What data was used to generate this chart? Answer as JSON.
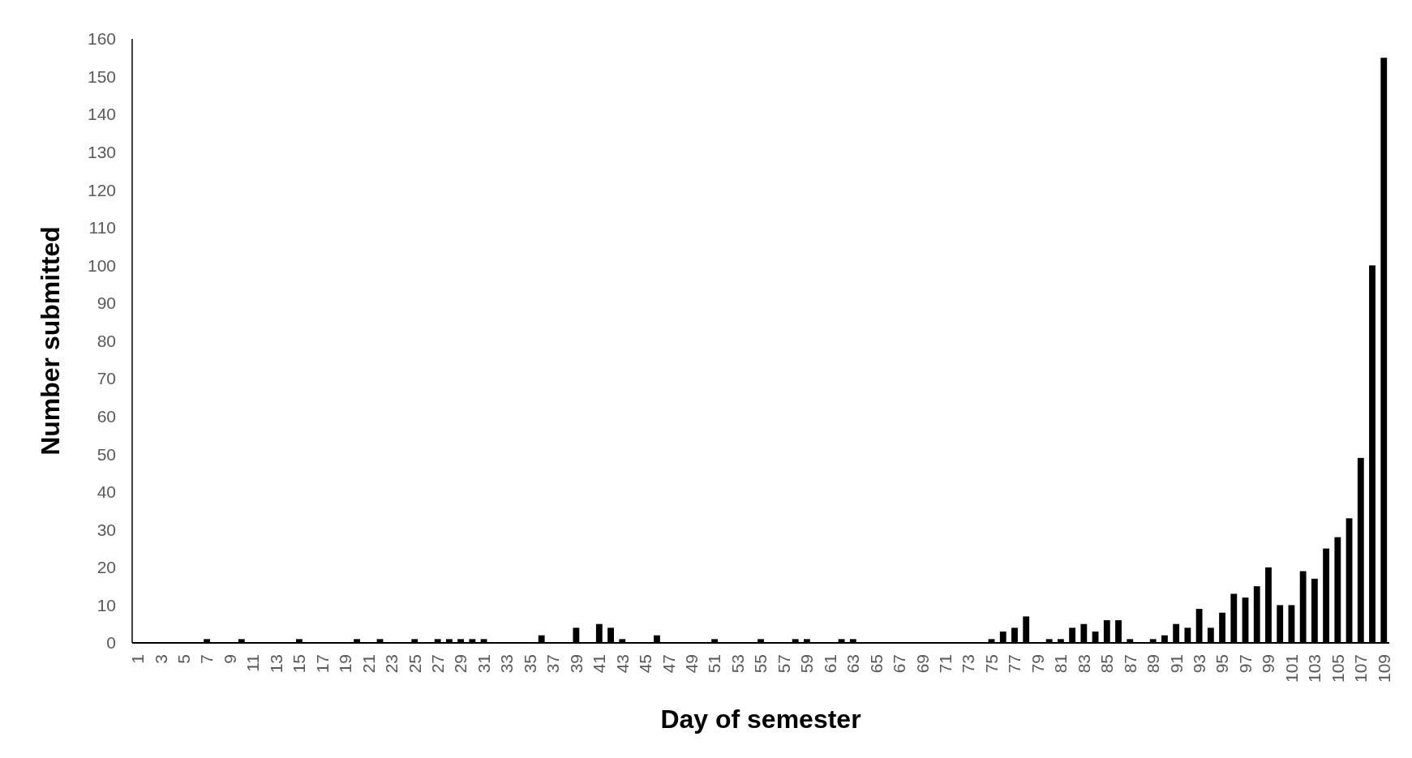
{
  "chart_data": {
    "type": "bar",
    "xlabel": "Day of semester",
    "ylabel": "Number submitted",
    "categories": [
      "1",
      null,
      "3",
      null,
      "5",
      null,
      "7",
      null,
      "9",
      null,
      "11",
      null,
      "13",
      null,
      "15",
      null,
      "17",
      null,
      "19",
      null,
      "21",
      null,
      "23",
      null,
      "25",
      null,
      "27",
      null,
      "29",
      null,
      "31",
      null,
      "33",
      null,
      "35",
      null,
      "37",
      null,
      "39",
      null,
      "41",
      null,
      "43",
      null,
      "45",
      null,
      "47",
      null,
      "49",
      null,
      "51",
      null,
      "53",
      null,
      "55",
      null,
      "57",
      null,
      "59",
      null,
      "61",
      null,
      "63",
      null,
      "65",
      null,
      "67",
      null,
      "69",
      null,
      "71",
      null,
      "73",
      null,
      "75",
      null,
      "77",
      null,
      "79",
      null,
      "81",
      null,
      "83",
      null,
      "85",
      null,
      "87",
      null,
      "89",
      null,
      "91",
      null,
      "93",
      null,
      "95",
      null,
      "97",
      null,
      "99",
      null,
      "101",
      null,
      "103",
      null,
      "105",
      null,
      "107",
      null,
      "109"
    ],
    "values": [
      0,
      0,
      0,
      0,
      0,
      0,
      1,
      0,
      0,
      1,
      0,
      0,
      0,
      0,
      1,
      0,
      0,
      0,
      0,
      1,
      0,
      1,
      0,
      0,
      1,
      0,
      1,
      1,
      1,
      1,
      1,
      0,
      0,
      0,
      0,
      2,
      0,
      0,
      4,
      0,
      5,
      4,
      1,
      0,
      0,
      2,
      0,
      0,
      0,
      0,
      1,
      0,
      0,
      0,
      1,
      0,
      0,
      1,
      1,
      0,
      0,
      1,
      1,
      0,
      0,
      0,
      0,
      0,
      0,
      0,
      0,
      0,
      0,
      0,
      1,
      3,
      4,
      7,
      0,
      1,
      1,
      4,
      5,
      3,
      6,
      6,
      1,
      0,
      1,
      2,
      5,
      4,
      9,
      4,
      8,
      13,
      12,
      15,
      20,
      10,
      10,
      19,
      17,
      25,
      28,
      33,
      49,
      100,
      155
    ],
    "color": "#000000",
    "ylim": [
      0,
      160
    ],
    "yticks": [
      0,
      10,
      20,
      30,
      40,
      50,
      60,
      70,
      80,
      90,
      100,
      110,
      120,
      130,
      140,
      150,
      160
    ],
    "grid": false
  }
}
